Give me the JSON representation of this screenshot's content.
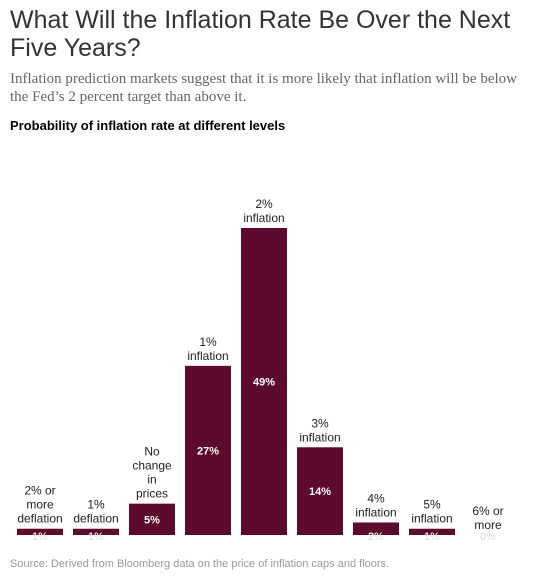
{
  "title": "What Will the Inflation Rate Be Over the Next Five Years?",
  "subtitle": "Inflation prediction markets suggest that it is more likely that inflation will be below the Fed’s 2 percent target than above it.",
  "heading": "Probability of inflation rate at different levels",
  "source": "Source:  Derived from Bloomberg data on the price of inflation caps and floors.",
  "colors": {
    "bar": "#5c0a2e",
    "value_text": "#ffffff"
  },
  "chart_data": {
    "type": "bar",
    "title": "Probability of inflation rate at different levels",
    "categories": [
      [
        "2% or",
        "more",
        "deflation"
      ],
      [
        "1%",
        "deflation"
      ],
      [
        "No",
        "change",
        "in",
        "prices"
      ],
      [
        "1%",
        "inflation"
      ],
      [
        "2%",
        "inflation"
      ],
      [
        "3%",
        "inflation"
      ],
      [
        "4%",
        "inflation"
      ],
      [
        "5%",
        "inflation"
      ],
      [
        "6% or",
        "more"
      ]
    ],
    "values": [
      1,
      1,
      5,
      27,
      49,
      14,
      2,
      1,
      0
    ],
    "value_labels": [
      "1%",
      "1%",
      "5%",
      "27%",
      "49%",
      "14%",
      "2%",
      "1%",
      "0%"
    ],
    "ylim": [
      0,
      49
    ],
    "xlabel": "",
    "ylabel": "",
    "grid": false,
    "legend": "none"
  }
}
